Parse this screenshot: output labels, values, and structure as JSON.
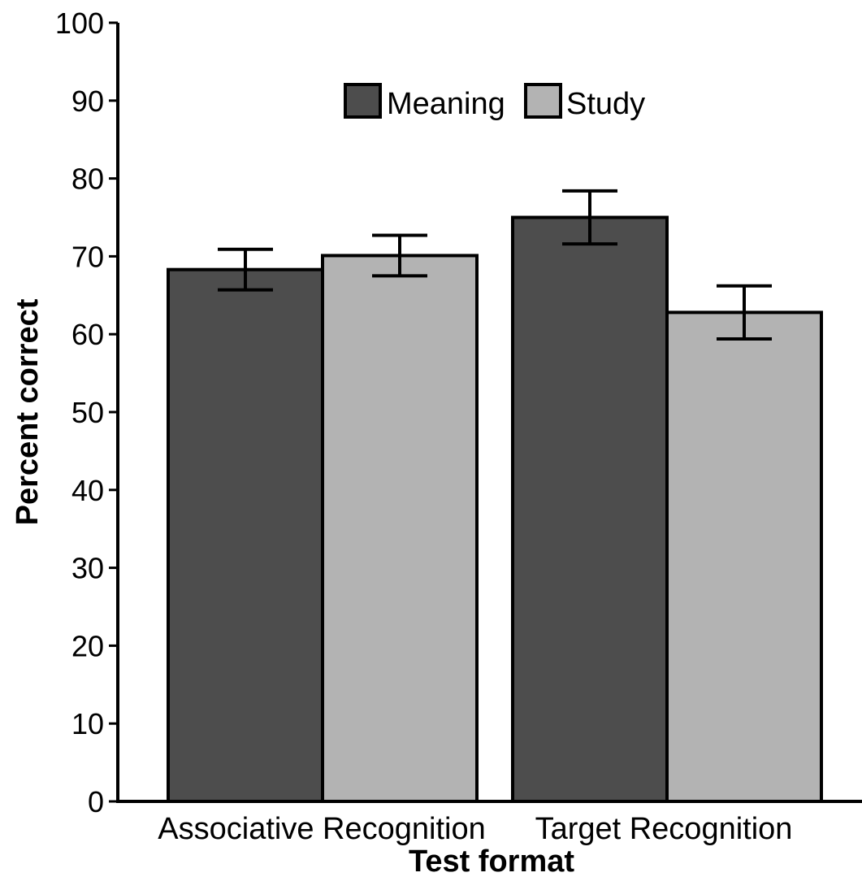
{
  "chart_data": {
    "type": "bar",
    "xlabel": "Test format",
    "ylabel": "Percent correct",
    "ylim": [
      0,
      100
    ],
    "yticks": [
      0,
      10,
      20,
      30,
      40,
      50,
      60,
      70,
      80,
      90,
      100
    ],
    "categories": [
      "Associative Recognition",
      "Target Recognition"
    ],
    "series": [
      {
        "name": "Meaning",
        "values": [
          68.3,
          75.0
        ],
        "error": [
          2.6,
          3.4
        ],
        "color": "#4d4d4d"
      },
      {
        "name": "Study",
        "values": [
          70.1,
          62.8
        ],
        "error": [
          2.6,
          3.4
        ],
        "color": "#b3b3b3"
      }
    ],
    "legend_position": "top-center",
    "grid": false
  }
}
